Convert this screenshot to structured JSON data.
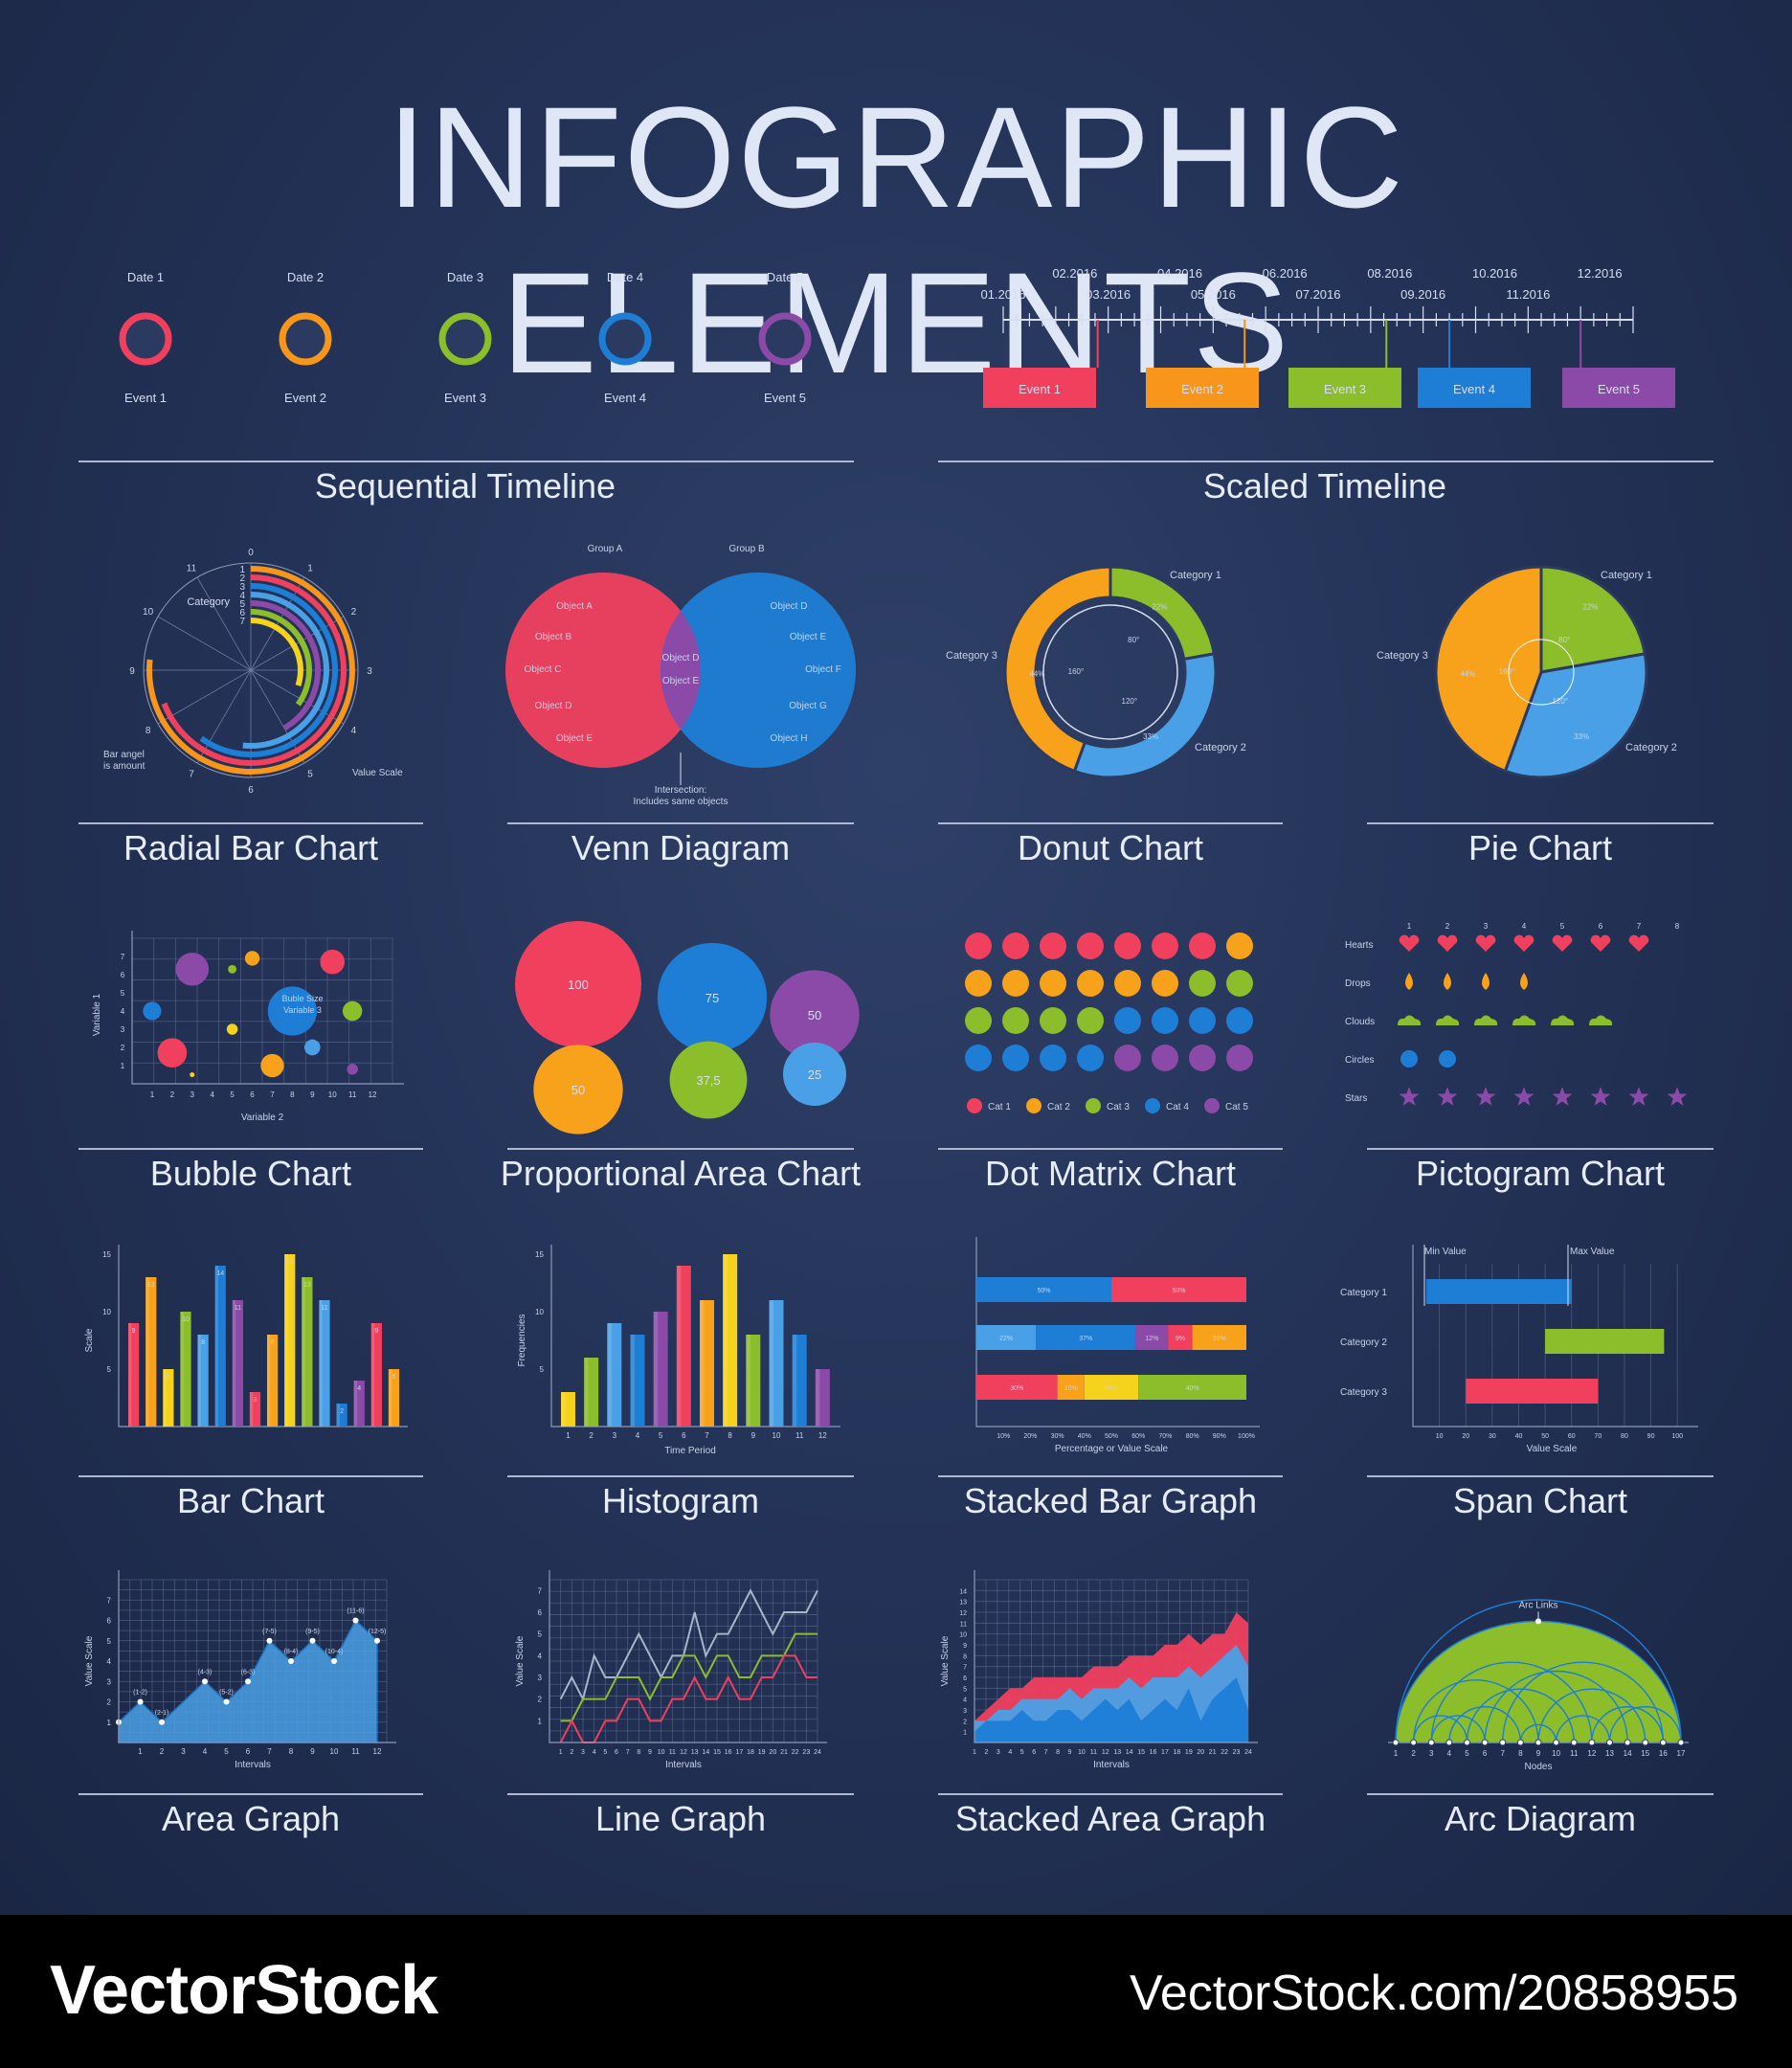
{
  "title": "INFOGRAPHIC ELEMENTS",
  "footer": {
    "brand": "VectorStock",
    "url": "VectorStock.com/20858955"
  },
  "colors": {
    "red": "#f0405e",
    "orange": "#f7a21a",
    "yellow": "#f5d21c",
    "green": "#8cbd2a",
    "blue": "#1e7ed6",
    "lightblue": "#4aa0e6",
    "purple": "#8c4aa8",
    "pink": "#e0407a"
  },
  "captions": {
    "seq": "Sequential Timeline",
    "scaled": "Scaled Timeline",
    "radial": "Radial Bar Chart",
    "venn": "Venn Diagram",
    "donut": "Donut Chart",
    "pie": "Pie Chart",
    "bubble": "Bubble Chart",
    "prop": "Proportional Area Chart",
    "dot": "Dot Matrix Chart",
    "picto": "Pictogram Chart",
    "bar": "Bar Chart",
    "hist": "Histogram",
    "stacked": "Stacked Bar Graph",
    "span": "Span Chart",
    "area": "Area Graph",
    "line": "Line Graph",
    "sarea": "Stacked Area Graph",
    "arc": "Arc Diagram"
  },
  "seq_timeline": {
    "dates": [
      "Date 1",
      "Date 2",
      "Date 3",
      "Date 4",
      "Date 5"
    ],
    "events": [
      "Event 1",
      "Event 2",
      "Event 3",
      "Event 4",
      "Event 5"
    ],
    "colors": [
      "#f0405e",
      "#f7961a",
      "#8cbd2a",
      "#1e7ed6",
      "#8c4aa8"
    ]
  },
  "scaled_timeline": {
    "labels_top": [
      "02.2016",
      "04.2016",
      "06.2016",
      "08.2016",
      "10.2016",
      "12.2016"
    ],
    "labels_bottom": [
      "01.2016",
      "03.2016",
      "05.2016",
      "07.2016",
      "09.2016",
      "11.2016"
    ],
    "events": [
      "Event 1",
      "Event 2",
      "Event 3",
      "Event 4",
      "Event 5"
    ],
    "colors": [
      "#f0405e",
      "#f7961a",
      "#8cbd2a",
      "#1e7ed6",
      "#8c4aa8"
    ],
    "event_months": [
      1.8,
      4.6,
      7.3,
      8.5,
      11.0
    ]
  },
  "radial": {
    "category_label": "Category",
    "numbers": [
      "1",
      "2",
      "3",
      "4",
      "5",
      "6",
      "7"
    ],
    "ticks": [
      "0",
      "1",
      "2",
      "3",
      "4",
      "5",
      "6",
      "7",
      "8",
      "9",
      "10",
      "11"
    ],
    "note_left": "Bar angel is amount",
    "note_right": "Value Scale",
    "bars": [
      {
        "value": 9.2,
        "color": "#f7961a"
      },
      {
        "value": 8.3,
        "color": "#f0405e"
      },
      {
        "value": 7.2,
        "color": "#1e7ed6"
      },
      {
        "value": 6.2,
        "color": "#4aa0e6"
      },
      {
        "value": 5.0,
        "color": "#8c4aa8"
      },
      {
        "value": 4.2,
        "color": "#8cbd2a"
      },
      {
        "value": 3.6,
        "color": "#f5d21c"
      }
    ]
  },
  "venn": {
    "group_a": "Group A",
    "group_b": "Group B",
    "a_items": [
      "Object A",
      "Object B",
      "Object C",
      "Object D",
      "Object E"
    ],
    "b_items": [
      "Object D",
      "Object E",
      "Object F",
      "Object G",
      "Object H"
    ],
    "both": [
      "Object D",
      "Object E"
    ],
    "note": "Intersection:",
    "note2": "Includes same objects"
  },
  "donut": {
    "slices": [
      {
        "label": "Category 1",
        "pct": "22%",
        "angle": "80°",
        "value": 80,
        "color": "#8cbd2a"
      },
      {
        "label": "Category 2",
        "pct": "33%",
        "angle": "120°",
        "value": 120,
        "color": "#4aa0e6"
      },
      {
        "label": "Category 3",
        "pct": "44%",
        "angle": "160°",
        "value": 160,
        "color": "#f7a21a"
      }
    ]
  },
  "pie": {
    "slices": [
      {
        "label": "Category 1",
        "pct": "22%",
        "angle": "80°",
        "value": 80,
        "color": "#8cbd2a"
      },
      {
        "label": "Category 2",
        "pct": "33%",
        "angle": "120°",
        "value": 120,
        "color": "#4aa0e6"
      },
      {
        "label": "Category 3",
        "pct": "44%",
        "angle": "160°",
        "value": 160,
        "color": "#f7a21a"
      }
    ]
  },
  "bubble": {
    "xlabel": "Variable 2",
    "ylabel": "Variable 1",
    "note": "Buble Size",
    "note2": "Variable 3",
    "xticks": [
      "1",
      "2",
      "3",
      "4",
      "5",
      "6",
      "7",
      "8",
      "9",
      "10",
      "11",
      "12"
    ],
    "yticks": [
      "1",
      "2",
      "3",
      "4",
      "5",
      "6",
      "7"
    ],
    "points": [
      {
        "x": 1,
        "y": 4,
        "r": 1.5,
        "color": "#1e7ed6"
      },
      {
        "x": 2,
        "y": 1.7,
        "r": 2.4,
        "color": "#f0405e"
      },
      {
        "x": 3,
        "y": 0.5,
        "r": 0.4,
        "color": "#f5d21c"
      },
      {
        "x": 3,
        "y": 6.3,
        "r": 2.7,
        "color": "#8c4aa8"
      },
      {
        "x": 5,
        "y": 3,
        "r": 0.9,
        "color": "#f5d21c"
      },
      {
        "x": 5,
        "y": 6.3,
        "r": 0.7,
        "color": "#8cbd2a"
      },
      {
        "x": 6,
        "y": 6.9,
        "r": 1.2,
        "color": "#f7a21a"
      },
      {
        "x": 7,
        "y": 1,
        "r": 1.9,
        "color": "#f7a21a"
      },
      {
        "x": 8,
        "y": 4,
        "r": 4.0,
        "color": "#1e7ed6"
      },
      {
        "x": 9,
        "y": 2,
        "r": 1.3,
        "color": "#4aa0e6"
      },
      {
        "x": 10,
        "y": 6.7,
        "r": 2.0,
        "color": "#f0405e"
      },
      {
        "x": 11,
        "y": 4,
        "r": 1.6,
        "color": "#8cbd2a"
      },
      {
        "x": 11,
        "y": 0.8,
        "r": 0.9,
        "color": "#8c4aa8"
      }
    ]
  },
  "prop": {
    "items": [
      {
        "label": "100",
        "value": 100,
        "color": "#f0405e"
      },
      {
        "label": "75",
        "value": 75,
        "color": "#1e7ed6"
      },
      {
        "label": "50",
        "value": 50,
        "color": "#8c4aa8"
      },
      {
        "label": "50",
        "value": 50,
        "color": "#f7a21a"
      },
      {
        "label": "37,5",
        "value": 37.5,
        "color": "#8cbd2a"
      },
      {
        "label": "25",
        "value": 25,
        "color": "#4aa0e6"
      }
    ]
  },
  "dot": {
    "legend": [
      "Cat 1",
      "Cat 2",
      "Cat 3",
      "Cat 4",
      "Cat 5"
    ],
    "colors": [
      "#f0405e",
      "#f7a21a",
      "#8cbd2a",
      "#1e7ed6",
      "#8c4aa8"
    ],
    "counts": [
      7,
      7,
      6,
      8,
      4
    ]
  },
  "picto": {
    "rows": [
      "Hearts",
      "Drops",
      "Clouds",
      "Circles",
      "Stars"
    ],
    "counts": [
      7,
      4,
      6,
      2,
      8
    ],
    "colors": [
      "#f0405e",
      "#f7a21a",
      "#8cbd2a",
      "#1e7ed6",
      "#8c4aa8"
    ],
    "cols": [
      "1",
      "2",
      "3",
      "4",
      "5",
      "6",
      "7",
      "8"
    ]
  },
  "bar": {
    "ylabel": "Scale",
    "yticks": [
      "5",
      "10",
      "15"
    ],
    "values": [
      9,
      13,
      5,
      10,
      8,
      14,
      11,
      3,
      8,
      15,
      13,
      11,
      2,
      4,
      9,
      5
    ],
    "colors": [
      "#f0405e",
      "#f7a21a",
      "#f5d21c",
      "#8cbd2a",
      "#4aa0e6",
      "#1e7ed6",
      "#8c4aa8",
      "#f0405e",
      "#f7a21a",
      "#f5d21c",
      "#8cbd2a",
      "#4aa0e6",
      "#1e7ed6",
      "#8c4aa8",
      "#f0405e",
      "#f7a21a"
    ]
  },
  "hist": {
    "xlabel": "Time Period",
    "ylabel": "Frequencies",
    "xticks": [
      "1",
      "2",
      "3",
      "4",
      "5",
      "6",
      "7",
      "8",
      "9",
      "10",
      "11",
      "12"
    ],
    "yticks": [
      "5",
      "10",
      "15"
    ],
    "values": [
      3,
      6,
      9,
      8,
      10,
      14,
      11,
      15,
      8,
      11,
      8,
      5
    ],
    "colors": [
      "#f5d21c",
      "#8cbd2a",
      "#4aa0e6",
      "#1e7ed6",
      "#8c4aa8",
      "#f0405e",
      "#f7a21a",
      "#f5d21c",
      "#8cbd2a",
      "#4aa0e6",
      "#1e7ed6",
      "#8c4aa8"
    ]
  },
  "stacked": {
    "xlabel": "Percentage or Value Scale",
    "xticks": [
      "10%",
      "20%",
      "30%",
      "40%",
      "50%",
      "60%",
      "70%",
      "80%",
      "90%",
      "100%"
    ],
    "rows": [
      [
        {
          "v": 50,
          "label": "50%",
          "color": "#1e7ed6"
        },
        {
          "v": 50,
          "label": "50%",
          "color": "#f0405e"
        }
      ],
      [
        {
          "v": 22,
          "label": "22%",
          "color": "#4aa0e6"
        },
        {
          "v": 37,
          "label": "37%",
          "color": "#1e7ed6"
        },
        {
          "v": 12,
          "label": "12%",
          "color": "#8c4aa8"
        },
        {
          "v": 9,
          "label": "9%",
          "color": "#f0405e"
        },
        {
          "v": 20,
          "label": "20%",
          "color": "#f7a21a"
        }
      ],
      [
        {
          "v": 30,
          "label": "30%",
          "color": "#f0405e"
        },
        {
          "v": 10,
          "label": "10%",
          "color": "#f7a21a"
        },
        {
          "v": 20,
          "label": "20%",
          "color": "#f5d21c"
        },
        {
          "v": 40,
          "label": "40%",
          "color": "#8cbd2a"
        }
      ]
    ]
  },
  "span": {
    "min_label": "Min Value",
    "max_label": "Max Value",
    "xlabel": "Value Scale",
    "xticks": [
      "10",
      "20",
      "30",
      "40",
      "50",
      "60",
      "70",
      "80",
      "90",
      "100"
    ],
    "rows": [
      {
        "label": "Category 1",
        "min": 5,
        "max": 60,
        "color": "#1e7ed6"
      },
      {
        "label": "Category 2",
        "min": 50,
        "max": 95,
        "color": "#8cbd2a"
      },
      {
        "label": "Category 3",
        "min": 20,
        "max": 70,
        "color": "#f0405e"
      }
    ]
  },
  "area": {
    "xlabel": "Intervals",
    "ylabel": "Value Scale",
    "xticks": [
      "1",
      "2",
      "3",
      "4",
      "5",
      "6",
      "7",
      "8",
      "9",
      "10",
      "11",
      "12"
    ],
    "yticks": [
      "1",
      "2",
      "3",
      "4",
      "5",
      "6",
      "7"
    ],
    "points": [
      {
        "x": 0,
        "y": 1
      },
      {
        "x": 1,
        "y": 2,
        "label": "(1-2)"
      },
      {
        "x": 2,
        "y": 1,
        "label": "(2-1)"
      },
      {
        "x": 4,
        "y": 3,
        "label": "(4-3)"
      },
      {
        "x": 5,
        "y": 2,
        "label": "(5-2)"
      },
      {
        "x": 6,
        "y": 3,
        "label": "(6-3)"
      },
      {
        "x": 7,
        "y": 5,
        "label": "(7-5)"
      },
      {
        "x": 8,
        "y": 4,
        "label": "(8-4)"
      },
      {
        "x": 9,
        "y": 5,
        "label": "(9-5)"
      },
      {
        "x": 10,
        "y": 4,
        "label": "(10-4)"
      },
      {
        "x": 11,
        "y": 6,
        "label": "(11-6)"
      },
      {
        "x": 12,
        "y": 5,
        "label": "(12-5)"
      }
    ]
  },
  "line": {
    "xlabel": "Intervals",
    "ylabel": "Value Scale",
    "yticks": [
      "1",
      "2",
      "3",
      "4",
      "5",
      "6",
      "7"
    ],
    "xticks": [
      "1",
      "2",
      "3",
      "4",
      "5",
      "6",
      "7",
      "8",
      "9",
      "10",
      "11",
      "12",
      "13",
      "14",
      "15",
      "16",
      "17",
      "18",
      "19",
      "20",
      "21",
      "22",
      "23",
      "24"
    ],
    "series": [
      {
        "color": "#a8b4c8",
        "values": [
          2,
          3,
          2,
          4,
          3,
          3,
          4,
          5,
          4,
          3,
          4,
          4,
          6,
          4,
          5,
          5,
          6,
          7,
          6,
          5,
          6,
          6,
          6,
          7
        ]
      },
      {
        "color": "#8cbd2a",
        "values": [
          1,
          1,
          2,
          2,
          2,
          3,
          3,
          3,
          2,
          3,
          3,
          4,
          4,
          3,
          4,
          4,
          3,
          3,
          4,
          4,
          4,
          5,
          5,
          5
        ]
      },
      {
        "color": "#f0405e",
        "values": [
          0,
          1,
          0,
          0,
          1,
          1,
          2,
          2,
          1,
          1,
          2,
          2,
          3,
          2,
          2,
          3,
          2,
          2,
          3,
          3,
          4,
          4,
          3,
          3
        ]
      }
    ]
  },
  "sarea": {
    "xlabel": "Intervals",
    "ylabel": "Value Scale",
    "yticks": [
      "1",
      "2",
      "3",
      "4",
      "5",
      "6",
      "7",
      "8",
      "9",
      "10",
      "11",
      "12",
      "13",
      "14"
    ],
    "xticks": [
      "1",
      "2",
      "3",
      "4",
      "5",
      "6",
      "7",
      "8",
      "9",
      "10",
      "11",
      "12",
      "13",
      "14",
      "15",
      "16",
      "17",
      "18",
      "19",
      "20",
      "21",
      "22",
      "23",
      "24"
    ],
    "series": [
      {
        "color": "#1e7ed6",
        "values": [
          1,
          2,
          2,
          2,
          3,
          2,
          2,
          3,
          3,
          2,
          3,
          4,
          3,
          4,
          2,
          3,
          4,
          3,
          5,
          2,
          4,
          5,
          6,
          3
        ]
      },
      {
        "color": "#4aa0e6",
        "values": [
          1,
          0,
          1,
          1,
          1,
          2,
          2,
          1,
          2,
          2,
          2,
          1,
          2,
          2,
          3,
          3,
          2,
          3,
          2,
          4,
          3,
          3,
          3,
          4
        ]
      },
      {
        "color": "#f0405e",
        "values": [
          0,
          1,
          1,
          2,
          1,
          2,
          2,
          2,
          1,
          2,
          2,
          2,
          2,
          2,
          3,
          2,
          3,
          3,
          3,
          3,
          3,
          2,
          3,
          4
        ]
      }
    ]
  },
  "arc": {
    "label": "Arc Links",
    "xlabel": "Nodes",
    "nodes": [
      "1",
      "2",
      "3",
      "4",
      "5",
      "6",
      "7",
      "8",
      "9",
      "10",
      "11",
      "12",
      "13",
      "14",
      "15",
      "16",
      "17"
    ],
    "links": [
      [
        1,
        17
      ],
      [
        2,
        9
      ],
      [
        3,
        12
      ],
      [
        4,
        8
      ],
      [
        5,
        11
      ],
      [
        6,
        14
      ],
      [
        2,
        5
      ],
      [
        7,
        16
      ],
      [
        9,
        15
      ],
      [
        10,
        13
      ],
      [
        12,
        16
      ],
      [
        13,
        17
      ],
      [
        3,
        6
      ],
      [
        8,
        10
      ]
    ]
  }
}
